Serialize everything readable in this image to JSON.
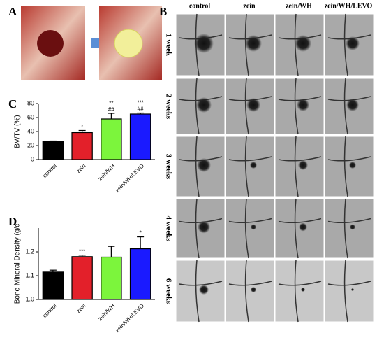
{
  "panel_labels": [
    "A",
    "B",
    "C",
    "D"
  ],
  "image_grid": {
    "columns": [
      "control",
      "zein",
      "zein/WH",
      "zein/WH/LEVO"
    ],
    "rows": [
      "1 week",
      "2 weeks",
      "3 weeks",
      "4 weeks",
      "6 weeks"
    ]
  },
  "chart_data": [
    {
      "type": "bar",
      "y_label": "BV/TV (%)",
      "categories": [
        "control",
        "zein",
        "zein/WH",
        "zein/WH/LEVO"
      ],
      "values": [
        26,
        38.5,
        58,
        65
      ],
      "errors": [
        0.5,
        3,
        8,
        1.5
      ],
      "annotations": [
        null,
        [
          "*"
        ],
        [
          "**",
          "##"
        ],
        [
          "***",
          "##"
        ]
      ],
      "colors": [
        "#000000",
        "#e3202a",
        "#7cf53c",
        "#1a1aff"
      ],
      "ylim": [
        0,
        80
      ],
      "yticks": [
        0,
        20,
        40,
        60,
        80
      ]
    },
    {
      "type": "bar",
      "y_label": "Bone Mineral Density (g/c",
      "categories": [
        "control",
        "zein",
        "zein/WH",
        "zein/WH/LEVO"
      ],
      "values": [
        1.115,
        1.18,
        1.178,
        1.213
      ],
      "errors": [
        0.008,
        0.006,
        0.045,
        0.05
      ],
      "annotations": [
        null,
        [
          "***"
        ],
        null,
        [
          "*"
        ]
      ],
      "colors": [
        "#000000",
        "#e3202a",
        "#7cf53c",
        "#1a1aff"
      ],
      "ylim": [
        1.0,
        1.3
      ],
      "yticks": [
        {
          "value": 1,
          "label": "1.0"
        },
        1.1,
        1.2
      ]
    }
  ]
}
